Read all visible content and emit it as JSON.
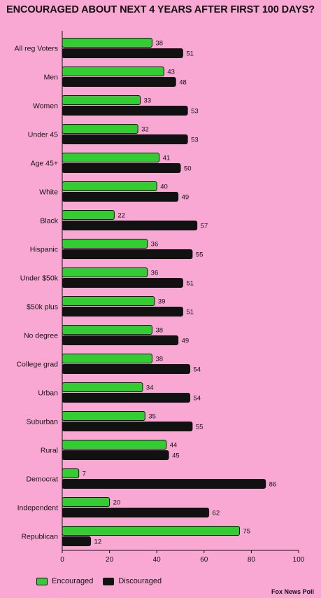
{
  "chart_data": {
    "type": "bar",
    "orientation": "horizontal",
    "title": "ENCOURAGED ABOUT NEXT 4 YEARS AFTER FIRST 100 DAYS?",
    "source": "Fox News Poll",
    "categories": [
      "All reg Voters",
      "Men",
      "Women",
      "Under 45",
      "Age 45+",
      "White",
      "Black",
      "Hispanic",
      "Under $50k",
      "$50k plus",
      "No degree",
      "College grad",
      "Urban",
      "Suburban",
      "Rural",
      "Democrat",
      "Independent",
      "Republican"
    ],
    "series": [
      {
        "name": "Encouraged",
        "color": "#33cc33",
        "values": [
          38,
          43,
          33,
          32,
          41,
          40,
          22,
          36,
          36,
          39,
          38,
          38,
          34,
          35,
          44,
          7,
          20,
          75
        ]
      },
      {
        "name": "Discouraged",
        "color": "#111111",
        "values": [
          51,
          48,
          53,
          53,
          50,
          49,
          57,
          55,
          51,
          51,
          49,
          54,
          54,
          55,
          45,
          86,
          62,
          12
        ]
      }
    ],
    "xlim": [
      0,
      100
    ],
    "xticks": [
      0,
      20,
      40,
      60,
      80,
      100
    ],
    "grid": false,
    "legend_position": "bottom-left"
  }
}
